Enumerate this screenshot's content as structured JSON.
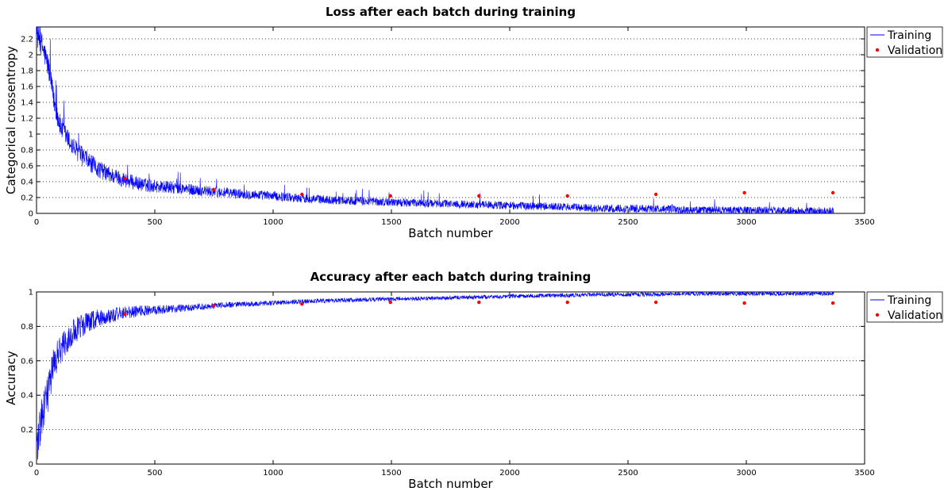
{
  "chart_data": [
    {
      "type": "line",
      "title": "Loss after each batch during training",
      "xlabel": "Batch number",
      "ylabel": "Categorical crossentropy",
      "xlim": [
        0,
        3500
      ],
      "ylim": [
        0,
        2.35
      ],
      "xticks": [
        0,
        500,
        1000,
        1500,
        2000,
        2500,
        3000,
        3500
      ],
      "yticks": [
        0,
        0.2,
        0.4,
        0.6,
        0.8,
        1,
        1.2,
        1.4,
        1.6,
        1.8,
        2,
        2.2
      ],
      "grid": "horizontal dotted",
      "legend_position": "outside-top-right",
      "series": [
        {
          "name": "Training",
          "style": "line",
          "color": "#0000ff",
          "noisy": true,
          "x": [
            0,
            25,
            50,
            75,
            100,
            150,
            200,
            250,
            300,
            375,
            450,
            550,
            650,
            750,
            900,
            1000,
            1125,
            1250,
            1500,
            1750,
            1875,
            2000,
            2250,
            2375,
            2625,
            2750,
            3000,
            3250,
            3370
          ],
          "y": [
            2.28,
            2.1,
            1.85,
            1.4,
            1.1,
            0.85,
            0.7,
            0.58,
            0.5,
            0.42,
            0.36,
            0.33,
            0.3,
            0.27,
            0.24,
            0.22,
            0.19,
            0.17,
            0.14,
            0.12,
            0.11,
            0.1,
            0.08,
            0.06,
            0.06,
            0.04,
            0.04,
            0.03,
            0.03
          ]
        },
        {
          "name": "Validation",
          "style": "points",
          "color": "#ff0000",
          "x": [
            374,
            748,
            1122,
            1496,
            1870,
            2244,
            2618,
            2992,
            3366
          ],
          "y": [
            0.44,
            0.3,
            0.24,
            0.22,
            0.22,
            0.22,
            0.24,
            0.26,
            0.26
          ]
        }
      ]
    },
    {
      "type": "line",
      "title": "Accuracy after each batch during training",
      "xlabel": "Batch number",
      "ylabel": "Accuracy",
      "xlim": [
        0,
        3500
      ],
      "ylim": [
        0,
        1
      ],
      "xticks": [
        0,
        500,
        1000,
        1500,
        2000,
        2500,
        3000,
        3500
      ],
      "yticks": [
        0,
        0.2,
        0.4,
        0.6,
        0.8,
        1
      ],
      "grid": "horizontal dotted",
      "legend_position": "outside-top-right",
      "series": [
        {
          "name": "Training",
          "style": "line",
          "color": "#0000ff",
          "noisy": true,
          "x": [
            0,
            25,
            50,
            75,
            100,
            150,
            200,
            250,
            300,
            375,
            450,
            550,
            650,
            750,
            900,
            1000,
            1125,
            1250,
            1500,
            1750,
            1875,
            2000,
            2250,
            2375,
            2625,
            2750,
            3000,
            3250,
            3370
          ],
          "y": [
            0.1,
            0.28,
            0.42,
            0.6,
            0.67,
            0.76,
            0.81,
            0.84,
            0.86,
            0.88,
            0.89,
            0.9,
            0.91,
            0.92,
            0.93,
            0.935,
            0.945,
            0.95,
            0.958,
            0.965,
            0.97,
            0.975,
            0.98,
            0.985,
            0.985,
            0.99,
            0.99,
            0.99,
            0.99
          ]
        },
        {
          "name": "Validation",
          "style": "points",
          "color": "#ff0000",
          "x": [
            374,
            748,
            1122,
            1496,
            1870,
            2244,
            2618,
            2992,
            3366
          ],
          "y": [
            0.87,
            0.92,
            0.93,
            0.94,
            0.94,
            0.94,
            0.94,
            0.935,
            0.935
          ]
        }
      ]
    }
  ]
}
